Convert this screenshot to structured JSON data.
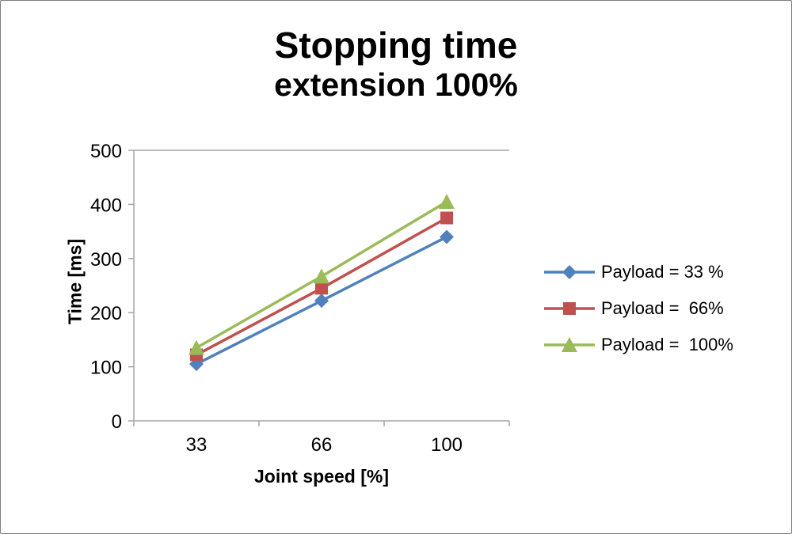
{
  "title": {
    "line1": "Stopping time",
    "line2": "extension 100%"
  },
  "chart_data": {
    "type": "line",
    "title": "Stopping time extension 100%",
    "xlabel": "Joint speed [%]",
    "ylabel": "Time [ms]",
    "categories": [
      "33",
      "66",
      "100"
    ],
    "y_ticks": [
      0,
      100,
      200,
      300,
      400,
      500
    ],
    "ylim": [
      0,
      500
    ],
    "grid": false,
    "plot_border": "top-left-bottom",
    "axis_color": "#a6a6a6",
    "legend_position": "right",
    "series": [
      {
        "name": "Payload = 33 %",
        "marker": "diamond",
        "color": "#4F81BD",
        "values": [
          105,
          222,
          340
        ]
      },
      {
        "name": "Payload =  66%",
        "marker": "square",
        "color": "#C0504D",
        "values": [
          122,
          245,
          375
        ]
      },
      {
        "name": "Payload =  100%",
        "marker": "triangle",
        "color": "#9BBB59",
        "values": [
          135,
          267,
          405
        ]
      }
    ]
  }
}
